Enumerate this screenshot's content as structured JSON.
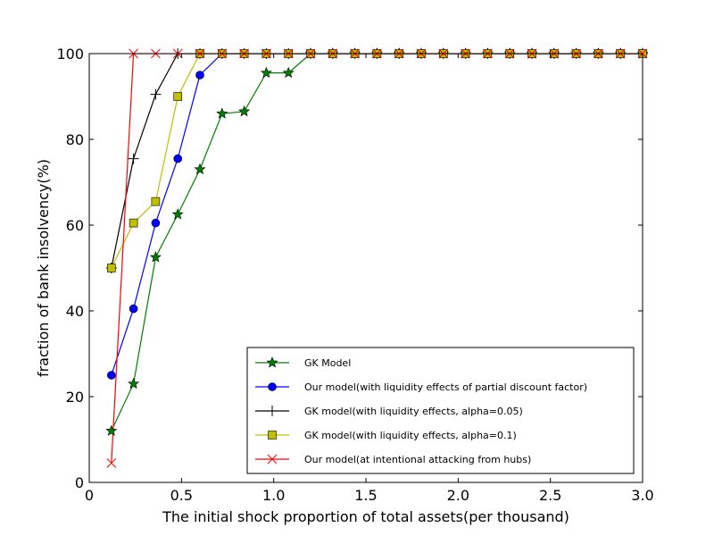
{
  "chart_data": {
    "type": "line",
    "title": "",
    "xlabel": "The initial shock proportion of total assets(per thousand)",
    "ylabel": "fraction of bank insolvency(%)",
    "xlim": [
      0,
      3.0
    ],
    "ylim": [
      0,
      100
    ],
    "xticks": [
      "0",
      "0.5",
      "1.0",
      "1.5",
      "2.0",
      "2.5",
      "3.0"
    ],
    "xtick_values": [
      0,
      0.5,
      1.0,
      1.5,
      2.0,
      2.5,
      3.0
    ],
    "yticks": [
      "0",
      "20",
      "40",
      "60",
      "80",
      "100"
    ],
    "ytick_values": [
      0,
      20,
      40,
      60,
      80,
      100
    ],
    "grid": false,
    "legend_position": "lower-right",
    "series": [
      {
        "name": "GK Model",
        "color": "#008000",
        "marker": "star",
        "x": [
          0.12,
          0.24,
          0.36,
          0.48,
          0.6,
          0.72,
          0.84,
          0.96,
          1.08,
          1.2,
          1.32,
          1.44,
          1.56,
          1.68,
          1.8,
          1.92,
          2.04,
          2.16,
          2.28,
          2.4,
          2.52,
          2.64,
          2.76,
          2.88,
          3.0
        ],
        "y": [
          12,
          23,
          52.5,
          62.5,
          73,
          86,
          86.5,
          95.5,
          95.5,
          100,
          100,
          100,
          100,
          100,
          100,
          100,
          100,
          100,
          100,
          100,
          100,
          100,
          100,
          100,
          100
        ]
      },
      {
        "name": "Our model(with liquidity effects of partial discount factor)",
        "color": "#0000ff",
        "marker": "circle",
        "x": [
          0.12,
          0.24,
          0.36,
          0.48,
          0.6,
          0.72,
          0.84,
          0.96,
          1.08,
          1.2,
          1.32,
          1.44,
          1.56,
          1.68,
          1.8,
          1.92,
          2.04,
          2.16,
          2.28,
          2.4,
          2.52,
          2.64,
          2.76,
          2.88,
          3.0
        ],
        "y": [
          25,
          40.5,
          60.5,
          75.5,
          95,
          100,
          100,
          100,
          100,
          100,
          100,
          100,
          100,
          100,
          100,
          100,
          100,
          100,
          100,
          100,
          100,
          100,
          100,
          100,
          100
        ]
      },
      {
        "name": "GK model(with liquidity effects, alpha=0.05)",
        "color": "#000000",
        "marker": "plus",
        "x": [
          0.12,
          0.24,
          0.36,
          0.48,
          0.6,
          0.72,
          0.84,
          0.96,
          1.08,
          1.2,
          1.32,
          1.44,
          1.56,
          1.68,
          1.8,
          1.92,
          2.04,
          2.16,
          2.28,
          2.4,
          2.52,
          2.64,
          2.76,
          2.88,
          3.0
        ],
        "y": [
          50,
          75.5,
          90.5,
          100,
          100,
          100,
          100,
          100,
          100,
          100,
          100,
          100,
          100,
          100,
          100,
          100,
          100,
          100,
          100,
          100,
          100,
          100,
          100,
          100,
          100
        ]
      },
      {
        "name": "GK model(with liquidity effects, alpha=0.1)",
        "color": "#bfbf00",
        "marker": "square",
        "x": [
          0.12,
          0.24,
          0.36,
          0.48,
          0.6,
          0.72,
          0.84,
          0.96,
          1.08,
          1.2,
          1.32,
          1.44,
          1.56,
          1.68,
          1.8,
          1.92,
          2.04,
          2.16,
          2.28,
          2.4,
          2.52,
          2.64,
          2.76,
          2.88,
          3.0
        ],
        "y": [
          50,
          60.5,
          65.5,
          90,
          100,
          100,
          100,
          100,
          100,
          100,
          100,
          100,
          100,
          100,
          100,
          100,
          100,
          100,
          100,
          100,
          100,
          100,
          100,
          100,
          100
        ]
      },
      {
        "name": "Our model(at intentional attacking from hubs)",
        "color": "#ff0000",
        "marker": "x",
        "x": [
          0.12,
          0.24,
          0.36,
          0.48,
          0.6,
          0.72,
          0.84,
          0.96,
          1.08,
          1.2,
          1.32,
          1.44,
          1.56,
          1.68,
          1.8,
          1.92,
          2.04,
          2.16,
          2.28,
          2.4,
          2.52,
          2.64,
          2.76,
          2.88,
          3.0
        ],
        "y": [
          4.5,
          100,
          100,
          100,
          100,
          100,
          100,
          100,
          100,
          100,
          100,
          100,
          100,
          100,
          100,
          100,
          100,
          100,
          100,
          100,
          100,
          100,
          100,
          100,
          100
        ]
      }
    ]
  }
}
